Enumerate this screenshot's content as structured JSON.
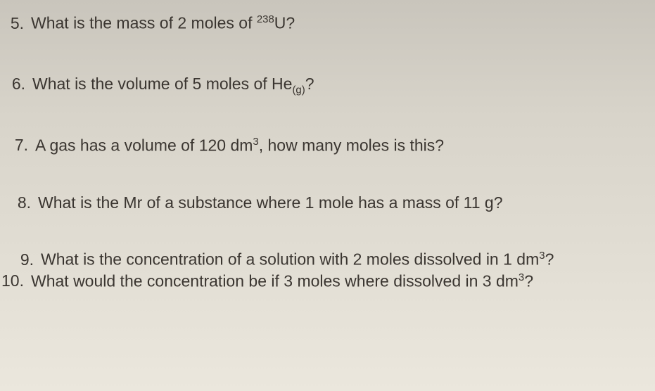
{
  "page": {
    "background_gradient": [
      "#c9c5bc",
      "#d8d4ca",
      "#e0dcd2",
      "#ebe7dd"
    ],
    "text_color": "#3a3530",
    "font_family": "Comic Sans MS",
    "base_font_size": 23
  },
  "questions": [
    {
      "number": "5.",
      "text_before": "What is the mass of 2 moles of ",
      "sup_pre": "238",
      "mid": "U?",
      "sub": "",
      "text_after": ""
    },
    {
      "number": "6.",
      "text_before": "What is the volume of 5 moles of He",
      "sup_pre": "",
      "mid": "",
      "sub": "(g)",
      "text_after": "?"
    },
    {
      "number": "7.",
      "text_before": "A gas has a volume of 120 dm",
      "sup_pre": "",
      "mid": "",
      "sub": "",
      "sup_post": "3",
      "text_after": ", how many moles is this?"
    },
    {
      "number": "8.",
      "text_before": "What is the Mr of a substance where 1 mole has a mass of 11 g?",
      "sup_pre": "",
      "mid": "",
      "sub": "",
      "text_after": ""
    },
    {
      "number": "9.",
      "text_before": "What is the concentration of a solution with 2 moles dissolved in 1 dm",
      "sup_pre": "",
      "mid": "",
      "sub": "",
      "sup_post": "3",
      "text_after": "?"
    },
    {
      "number": "10.",
      "text_before": "What would the concentration be if 3 moles where dissolved in 3 dm",
      "sup_pre": "",
      "mid": "",
      "sub": "",
      "sup_post": "3",
      "text_after": "?"
    }
  ]
}
